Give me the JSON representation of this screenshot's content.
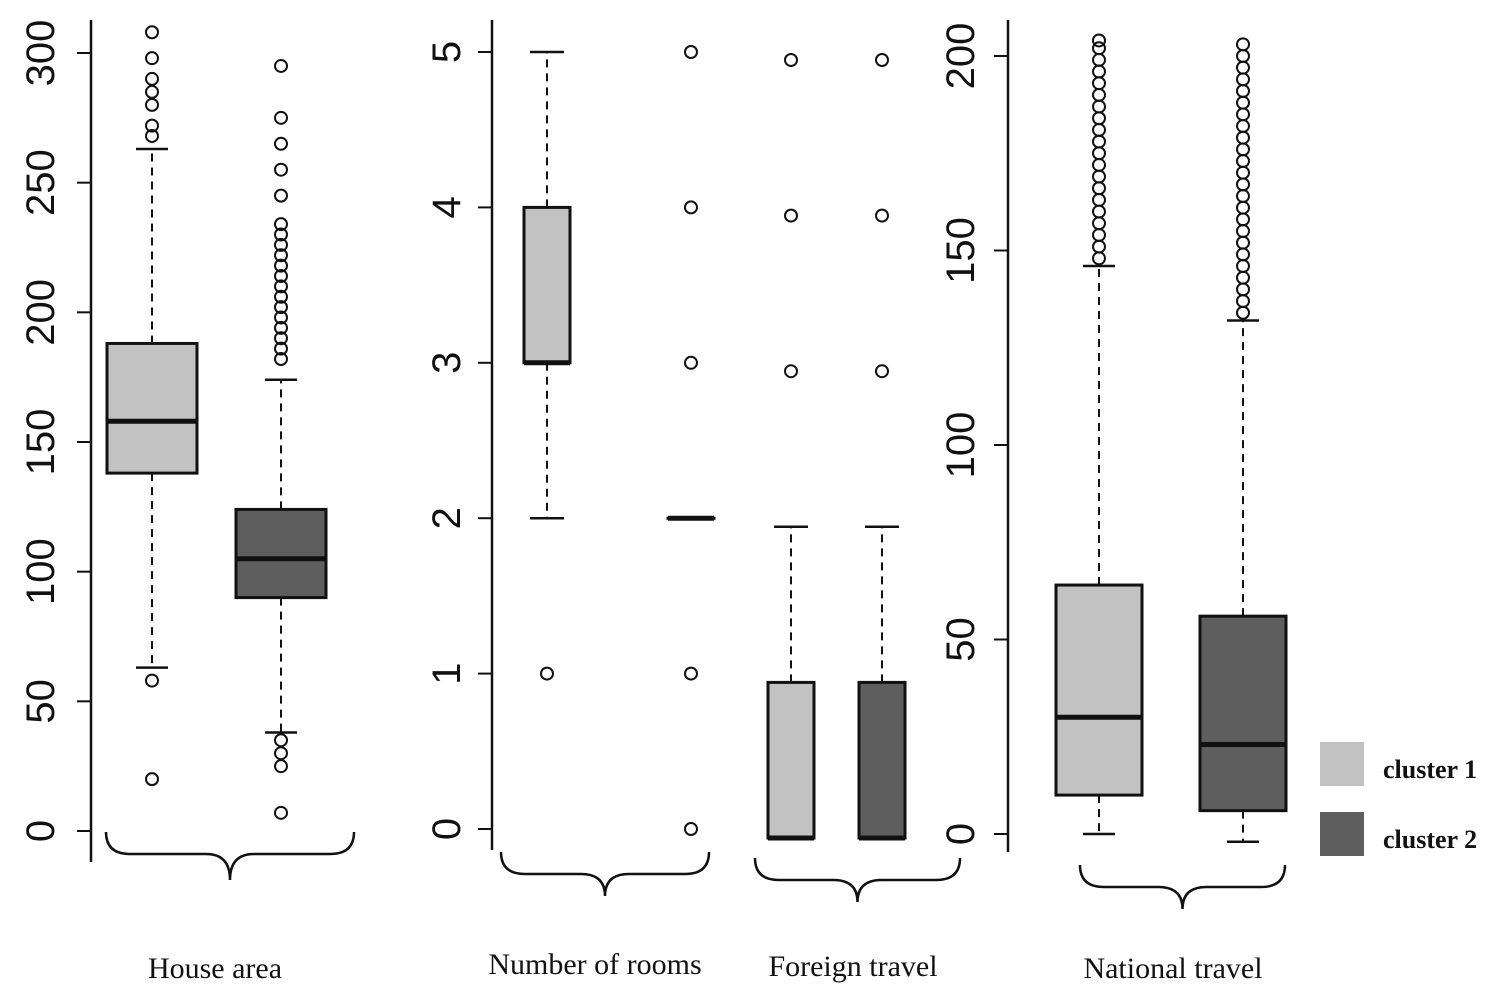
{
  "chart_data": {
    "type": "boxplot",
    "legend": {
      "placement": "bottom-right",
      "entries": [
        {
          "label": "cluster 1",
          "color": "#c2c2c2"
        },
        {
          "label": "cluster 2",
          "color": "#5e5e5e"
        }
      ]
    },
    "colors": {
      "cluster_1": "#c2c2c2",
      "cluster_2": "#5e5e5e"
    },
    "panels": [
      {
        "group_label": "House area",
        "ylim": [
          0,
          300
        ],
        "yticks": [
          0,
          50,
          100,
          150,
          200,
          250,
          300
        ],
        "boxes": [
          {
            "cluster": "cluster 1",
            "whisker_low": 63,
            "q1": 138,
            "median": 158,
            "q3": 188,
            "whisker_high": 263,
            "outliers": [
              20,
              58,
              268,
              272,
              280,
              285,
              290,
              298,
              308
            ]
          },
          {
            "cluster": "cluster 2",
            "whisker_low": 38,
            "q1": 90,
            "median": 105,
            "q3": 124,
            "whisker_high": 174,
            "outliers": [
              7,
              25,
              30,
              35,
              182,
              186,
              190,
              194,
              198,
              202,
              206,
              210,
              214,
              218,
              222,
              226,
              230,
              234,
              245,
              255,
              265,
              275,
              295
            ]
          }
        ]
      },
      {
        "group_label": "Number of rooms",
        "ylim": [
          0,
          5
        ],
        "yticks": [
          0,
          1,
          2,
          3,
          4,
          5
        ],
        "boxes": [
          {
            "cluster": "cluster 1",
            "whisker_low": 2,
            "q1": 3,
            "median": 3,
            "q3": 4,
            "whisker_high": 5,
            "outliers": [
              1
            ]
          },
          {
            "cluster": "cluster 2",
            "whisker_low": 2,
            "q1": 2,
            "median": 2,
            "q3": 2,
            "whisker_high": 2,
            "outliers": [
              0,
              1,
              3,
              4,
              5
            ]
          }
        ]
      },
      {
        "group_label": "Foreign travel",
        "ylim": [
          0,
          5
        ],
        "yticks": [],
        "boxes": [
          {
            "cluster": "cluster 1",
            "whisker_low": 0,
            "q1": 0,
            "median": 0,
            "q3": 1,
            "whisker_high": 2,
            "outliers": [
              3,
              4,
              5
            ]
          },
          {
            "cluster": "cluster 2",
            "whisker_low": 0,
            "q1": 0,
            "median": 0,
            "q3": 1,
            "whisker_high": 2,
            "outliers": [
              3,
              4,
              5
            ]
          }
        ]
      },
      {
        "group_label": "National travel",
        "ylim": [
          0,
          200
        ],
        "yticks": [
          0,
          50,
          100,
          150,
          200
        ],
        "boxes": [
          {
            "cluster": "cluster 1",
            "whisker_low": 0,
            "q1": 10,
            "median": 30,
            "q3": 64,
            "whisker_high": 146,
            "outliers": [
              148,
              151,
              154,
              157,
              160,
              163,
              166,
              169,
              172,
              175,
              178,
              181,
              184,
              187,
              190,
              193,
              196,
              199,
              202,
              204
            ]
          },
          {
            "cluster": "cluster 2",
            "whisker_low": -2,
            "q1": 6,
            "median": 23,
            "q3": 56,
            "whisker_high": 132,
            "outliers": [
              134,
              137,
              140,
              143,
              146,
              149,
              152,
              155,
              158,
              161,
              164,
              167,
              170,
              173,
              176,
              179,
              182,
              185,
              188,
              191,
              194,
              197,
              200,
              203
            ]
          }
        ]
      }
    ]
  }
}
